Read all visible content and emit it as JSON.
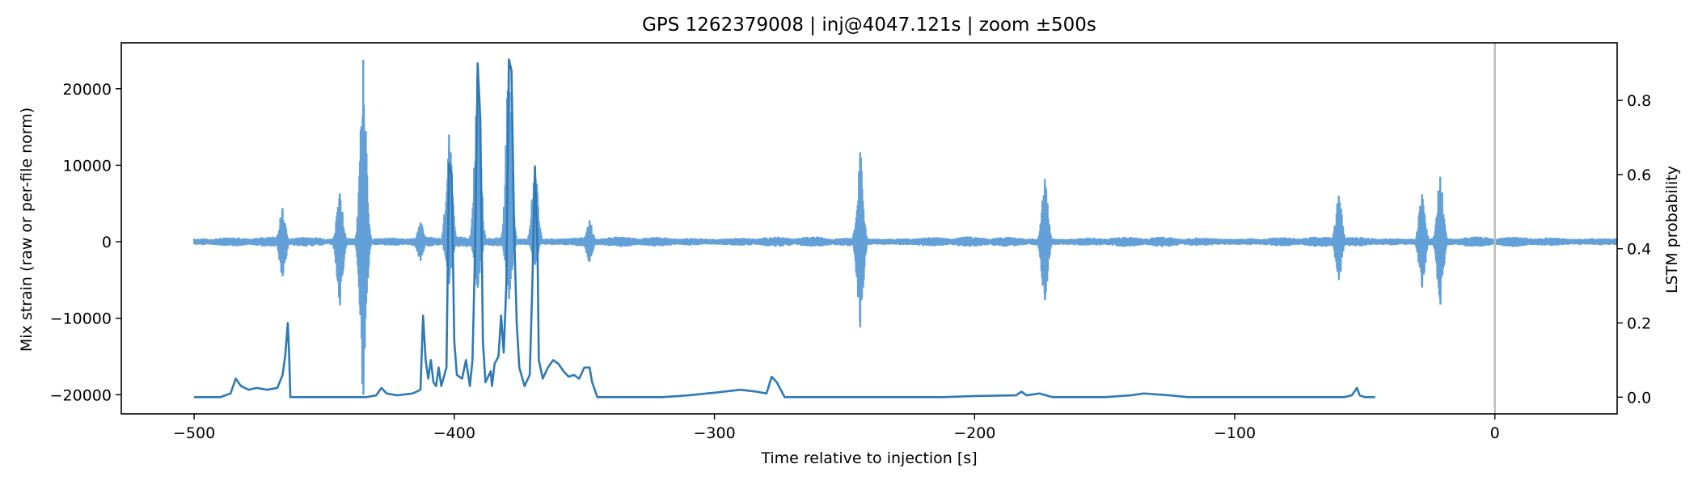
{
  "chart_data": {
    "type": "line",
    "title": "GPS 1262379008 | inj@4047.121s | zoom ±500s",
    "xlabel": "Time relative to injection [s]",
    "ylabel_left": "Mix strain (raw or per-file norm)",
    "ylabel_right": "LSTM probability",
    "xlim": [
      -528,
      47
    ],
    "ylim_left": [
      -22500,
      26000
    ],
    "ylim_right": [
      -0.045,
      0.955
    ],
    "x_ticks": [
      -500,
      -400,
      -300,
      -200,
      -100,
      0
    ],
    "x_tick_labels": [
      "−500",
      "−400",
      "−300",
      "−200",
      "−100",
      "0"
    ],
    "y_left_ticks": [
      -20000,
      -10000,
      0,
      10000,
      20000
    ],
    "y_left_tick_labels": [
      "−20000",
      "−10000",
      "0",
      "10000",
      "20000"
    ],
    "y_right_ticks": [
      0.0,
      0.2,
      0.4,
      0.6,
      0.8
    ],
    "y_right_tick_labels": [
      "0.0",
      "0.2",
      "0.4",
      "0.6",
      "0.8"
    ],
    "injection_marker_x": 0,
    "grid": false,
    "series": [
      {
        "axis": "left",
        "color": "#5b9bd5",
        "x_range": [
          -500,
          48
        ],
        "baseline_band": 700,
        "bursts": [
          {
            "x": -466,
            "top": 4400,
            "bottom": -4500
          },
          {
            "x": -444,
            "top": 6300,
            "bottom": -8300
          },
          {
            "x": -435,
            "top": 23800,
            "bottom": -20000
          },
          {
            "x": -413,
            "top": 2500,
            "bottom": -2500
          },
          {
            "x": -402,
            "top": 14000,
            "bottom": -5500
          },
          {
            "x": -391,
            "top": 23000,
            "bottom": -6000
          },
          {
            "x": -379,
            "top": 23800,
            "bottom": -7500
          },
          {
            "x": -369,
            "top": 10000,
            "bottom": -3000
          },
          {
            "x": -348,
            "top": 2800,
            "bottom": -2600
          },
          {
            "x": -244,
            "top": 11700,
            "bottom": -11200
          },
          {
            "x": -173,
            "top": 8200,
            "bottom": -7600
          },
          {
            "x": -60,
            "top": 6000,
            "bottom": -5000
          },
          {
            "x": -28,
            "top": 6200,
            "bottom": -6000
          },
          {
            "x": -21,
            "top": 8500,
            "bottom": -8200
          }
        ]
      },
      {
        "axis": "right",
        "color": "#2f7ab5",
        "points": [
          [
            -500,
            0.0
          ],
          [
            -490,
            0.0
          ],
          [
            -486,
            0.01
          ],
          [
            -484,
            0.05
          ],
          [
            -482,
            0.03
          ],
          [
            -479,
            0.02
          ],
          [
            -476,
            0.025
          ],
          [
            -472,
            0.02
          ],
          [
            -468,
            0.025
          ],
          [
            -466,
            0.06
          ],
          [
            -465,
            0.11
          ],
          [
            -464,
            0.2
          ],
          [
            -463.5,
            0.12
          ],
          [
            -463,
            0.0
          ],
          [
            -440,
            0.0
          ],
          [
            -434,
            0.0
          ],
          [
            -430,
            0.005
          ],
          [
            -428,
            0.025
          ],
          [
            -426,
            0.01
          ],
          [
            -422,
            0.005
          ],
          [
            -416,
            0.01
          ],
          [
            -413,
            0.02
          ],
          [
            -412,
            0.22
          ],
          [
            -411,
            0.1
          ],
          [
            -410,
            0.05
          ],
          [
            -409,
            0.1
          ],
          [
            -408,
            0.04
          ],
          [
            -407,
            0.03
          ],
          [
            -406,
            0.08
          ],
          [
            -405,
            0.03
          ],
          [
            -403,
            0.08
          ],
          [
            -402,
            0.63
          ],
          [
            -401,
            0.6
          ],
          [
            -400,
            0.15
          ],
          [
            -399,
            0.06
          ],
          [
            -397,
            0.05
          ],
          [
            -395.5,
            0.1
          ],
          [
            -394,
            0.03
          ],
          [
            -393,
            0.1
          ],
          [
            -392,
            0.4
          ],
          [
            -391,
            0.9
          ],
          [
            -390,
            0.75
          ],
          [
            -389,
            0.15
          ],
          [
            -388,
            0.04
          ],
          [
            -386,
            0.07
          ],
          [
            -385.5,
            0.03
          ],
          [
            -384.5,
            0.09
          ],
          [
            -383,
            0.11
          ],
          [
            -382,
            0.22
          ],
          [
            -381,
            0.12
          ],
          [
            -380,
            0.3
          ],
          [
            -379,
            0.91
          ],
          [
            -378,
            0.88
          ],
          [
            -377,
            0.45
          ],
          [
            -376,
            0.2
          ],
          [
            -375,
            0.08
          ],
          [
            -373,
            0.03
          ],
          [
            -371,
            0.06
          ],
          [
            -370,
            0.3
          ],
          [
            -369,
            0.62
          ],
          [
            -368,
            0.4
          ],
          [
            -367.5,
            0.1
          ],
          [
            -366,
            0.05
          ],
          [
            -364,
            0.08
          ],
          [
            -362,
            0.1
          ],
          [
            -360,
            0.09
          ],
          [
            -358,
            0.07
          ],
          [
            -356,
            0.055
          ],
          [
            -354,
            0.06
          ],
          [
            -352,
            0.05
          ],
          [
            -350,
            0.08
          ],
          [
            -348,
            0.08
          ],
          [
            -347,
            0.04
          ],
          [
            -345,
            0.0
          ],
          [
            -320,
            0.0
          ],
          [
            -310,
            0.005
          ],
          [
            -300,
            0.012
          ],
          [
            -290,
            0.02
          ],
          [
            -284,
            0.015
          ],
          [
            -280,
            0.01
          ],
          [
            -278,
            0.055
          ],
          [
            -276,
            0.04
          ],
          [
            -273,
            0.0
          ],
          [
            -250,
            0.0
          ],
          [
            -212,
            0.0
          ],
          [
            -200,
            0.003
          ],
          [
            -184,
            0.005
          ],
          [
            -182,
            0.015
          ],
          [
            -180,
            0.005
          ],
          [
            -175,
            0.01
          ],
          [
            -170,
            0.0
          ],
          [
            -150,
            0.0
          ],
          [
            -140,
            0.005
          ],
          [
            -135,
            0.01
          ],
          [
            -125,
            0.005
          ],
          [
            -118,
            0.0
          ],
          [
            -100,
            0.0
          ],
          [
            -58,
            0.0
          ],
          [
            -55,
            0.005
          ],
          [
            -53,
            0.025
          ],
          [
            -52,
            0.005
          ],
          [
            -50,
            0.0
          ],
          [
            -46,
            0.0
          ]
        ]
      }
    ]
  }
}
